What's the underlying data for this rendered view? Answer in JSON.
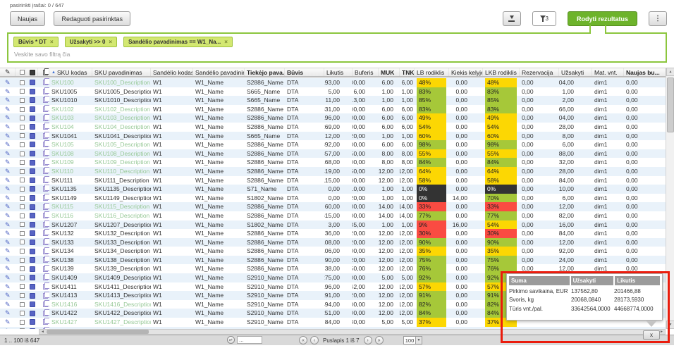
{
  "toolbar": {
    "selected_info": "pasirinkti įrašai: 0 / 647",
    "new_button": "Naujas",
    "edit_button": "Redaguoti pasirinktas",
    "show_results_button": "Rodyti rezultatus",
    "filter_count": "3"
  },
  "filter": {
    "chips": [
      {
        "label": "Būvis * DT"
      },
      {
        "label": "Užsakyti >> 0"
      },
      {
        "label": "Sandėlio pavadinimas == W1_Na..."
      }
    ],
    "placeholder": "Veskite savo filtrą čia"
  },
  "table": {
    "columns": [
      "SKU kodas",
      "SKU pavadinimas",
      "Sandėlio kodas",
      "Sandėlio pavadinimas",
      "Tiekėjo pava...",
      "Būvis",
      "Likutis",
      "Buferis",
      "MUK",
      "TNK",
      "LB rodiklis",
      "Kiekis kelyje",
      "LKB rodiklis",
      "Rezervacija",
      "Užsakyti",
      "Mat. vnt.",
      "Naujas bu..."
    ],
    "rows": [
      {
        "sku": "SKU100",
        "name": "SKU100_Description",
        "wh_code": "W1",
        "wh_name": "W1_Name",
        "supplier": "S2886_Name",
        "status": "DTA",
        "likutis": "193,00",
        "buferis": "400,00",
        "muk": "6,00",
        "tnk": "6,00",
        "lb": "48%",
        "lb_c": "yellow",
        "kiekis": "0,00",
        "lkb": "48%",
        "lkb_c": "yellow",
        "rez": "0,00",
        "uzsakyti": "204,00",
        "mat": "dim1",
        "naujas": "0,00",
        "green": true
      },
      {
        "sku": "SKU1005",
        "name": "SKU1005_Description",
        "wh_code": "W1",
        "wh_name": "W1_Name",
        "supplier": "S665_Name",
        "status": "DTA",
        "likutis": "5,00",
        "buferis": "6,00",
        "muk": "1,00",
        "tnk": "1,00",
        "lb": "83%",
        "lb_c": "green",
        "kiekis": "0,00",
        "lkb": "83%",
        "lkb_c": "green",
        "rez": "0,00",
        "uzsakyti": "1,00",
        "mat": "dim1",
        "naujas": "0,00",
        "green": false
      },
      {
        "sku": "SKU1010",
        "name": "SKU1010_Description",
        "wh_code": "W1",
        "wh_name": "W1_Name",
        "supplier": "S665_Name",
        "status": "DTA",
        "likutis": "11,00",
        "buferis": "13,00",
        "muk": "1,00",
        "tnk": "1,00",
        "lb": "85%",
        "lb_c": "green",
        "kiekis": "0,00",
        "lkb": "85%",
        "lkb_c": "green",
        "rez": "0,00",
        "uzsakyti": "2,00",
        "mat": "dim1",
        "naujas": "0,00",
        "green": false
      },
      {
        "sku": "SKU102",
        "name": "SKU102_Description",
        "wh_code": "W1",
        "wh_name": "W1_Name",
        "supplier": "S2886_Name",
        "status": "DTA",
        "likutis": "331,00",
        "buferis": "400,00",
        "muk": "6,00",
        "tnk": "6,00",
        "lb": "83%",
        "lb_c": "green",
        "kiekis": "0,00",
        "lkb": "83%",
        "lkb_c": "green",
        "rez": "0,00",
        "uzsakyti": "66,00",
        "mat": "dim1",
        "naujas": "0,00",
        "green": true
      },
      {
        "sku": "SKU103",
        "name": "SKU103_Description",
        "wh_code": "W1",
        "wh_name": "W1_Name",
        "supplier": "S2886_Name",
        "status": "DTA",
        "likutis": "196,00",
        "buferis": "400,00",
        "muk": "6,00",
        "tnk": "6,00",
        "lb": "49%",
        "lb_c": "yellow",
        "kiekis": "0,00",
        "lkb": "49%",
        "lkb_c": "yellow",
        "rez": "0,00",
        "uzsakyti": "204,00",
        "mat": "dim1",
        "naujas": "0,00",
        "green": true
      },
      {
        "sku": "SKU104",
        "name": "SKU104_Description",
        "wh_code": "W1",
        "wh_name": "W1_Name",
        "supplier": "S2886_Name",
        "status": "DTA",
        "likutis": "269,00",
        "buferis": "500,00",
        "muk": "6,00",
        "tnk": "6,00",
        "lb": "54%",
        "lb_c": "yellow",
        "kiekis": "0,00",
        "lkb": "54%",
        "lkb_c": "yellow",
        "rez": "0,00",
        "uzsakyti": "228,00",
        "mat": "dim1",
        "naujas": "0,00",
        "green": true
      },
      {
        "sku": "SKU1041",
        "name": "SKU1041_Description",
        "wh_code": "W1",
        "wh_name": "W1_Name",
        "supplier": "S665_Name",
        "status": "DTA",
        "likutis": "12,00",
        "buferis": "20,00",
        "muk": "1,00",
        "tnk": "1,00",
        "lb": "60%",
        "lb_c": "yellow",
        "kiekis": "0,00",
        "lkb": "60%",
        "lkb_c": "yellow",
        "rez": "0,00",
        "uzsakyti": "8,00",
        "mat": "dim1",
        "naujas": "0,00",
        "green": false
      },
      {
        "sku": "SKU105",
        "name": "SKU105_Description",
        "wh_code": "W1",
        "wh_name": "W1_Name",
        "supplier": "S2886_Name",
        "status": "DTA",
        "likutis": "392,00",
        "buferis": "400,00",
        "muk": "6,00",
        "tnk": "6,00",
        "lb": "98%",
        "lb_c": "green",
        "kiekis": "0,00",
        "lkb": "98%",
        "lkb_c": "green",
        "rez": "0,00",
        "uzsakyti": "6,00",
        "mat": "dim1",
        "naujas": "0,00",
        "green": true
      },
      {
        "sku": "SKU108",
        "name": "SKU108_Description",
        "wh_code": "W1",
        "wh_name": "W1_Name",
        "supplier": "S2886_Name",
        "status": "DTA",
        "likutis": "357,00",
        "buferis": "650,00",
        "muk": "8,00",
        "tnk": "8,00",
        "lb": "55%",
        "lb_c": "yellow",
        "kiekis": "0,00",
        "lkb": "55%",
        "lkb_c": "yellow",
        "rez": "0,00",
        "uzsakyti": "288,00",
        "mat": "dim1",
        "naujas": "0,00",
        "green": true
      },
      {
        "sku": "SKU109",
        "name": "SKU109_Description",
        "wh_code": "W1",
        "wh_name": "W1_Name",
        "supplier": "S2886_Name",
        "status": "DTA",
        "likutis": "168,00",
        "buferis": "200,00",
        "muk": "8,00",
        "tnk": "8,00",
        "lb": "84%",
        "lb_c": "green",
        "kiekis": "0,00",
        "lkb": "84%",
        "lkb_c": "green",
        "rez": "0,00",
        "uzsakyti": "32,00",
        "mat": "dim1",
        "naujas": "0,00",
        "green": true
      },
      {
        "sku": "SKU110",
        "name": "SKU110_Description",
        "wh_code": "W1",
        "wh_name": "W1_Name",
        "supplier": "S2886_Name",
        "status": "DTA",
        "likutis": "419,00",
        "buferis": "650,00",
        "muk": "12,00",
        "tnk": "12,00",
        "lb": "64%",
        "lb_c": "yellow",
        "kiekis": "0,00",
        "lkb": "64%",
        "lkb_c": "yellow",
        "rez": "0,00",
        "uzsakyti": "228,00",
        "mat": "dim1",
        "naujas": "0,00",
        "green": true
      },
      {
        "sku": "SKU111",
        "name": "SKU111_Description",
        "wh_code": "W1",
        "wh_name": "W1_Name",
        "supplier": "S2886_Name",
        "status": "DTA",
        "likutis": "115,00",
        "buferis": "200,00",
        "muk": "12,00",
        "tnk": "12,00",
        "lb": "58%",
        "lb_c": "yellow",
        "kiekis": "0,00",
        "lkb": "58%",
        "lkb_c": "yellow",
        "rez": "0,00",
        "uzsakyti": "84,00",
        "mat": "dim1",
        "naujas": "0,00",
        "green": false
      },
      {
        "sku": "SKU1135",
        "name": "SKU1135_Description",
        "wh_code": "W1",
        "wh_name": "W1_Name",
        "supplier": "S71_Name",
        "status": "DTA",
        "likutis": "0,00",
        "buferis": "10,00",
        "muk": "1,00",
        "tnk": "1,00",
        "lb": "0%",
        "lb_c": "black",
        "kiekis": "0,00",
        "lkb": "0%",
        "lkb_c": "black",
        "rez": "0,00",
        "uzsakyti": "10,00",
        "mat": "dim1",
        "naujas": "0,00",
        "green": false
      },
      {
        "sku": "SKU1149",
        "name": "SKU1149_Description",
        "wh_code": "W1",
        "wh_name": "W1_Name",
        "supplier": "S1802_Name",
        "status": "DTA",
        "likutis": "0,00",
        "buferis": "20,00",
        "muk": "1,00",
        "tnk": "1,00",
        "lb": "0%",
        "lb_c": "black",
        "kiekis": "14,00",
        "lkb": "70%",
        "lkb_c": "green",
        "rez": "0,00",
        "uzsakyti": "6,00",
        "mat": "dim1",
        "naujas": "0,00",
        "green": false
      },
      {
        "sku": "SKU115",
        "name": "SKU115_Description",
        "wh_code": "W1",
        "wh_name": "W1_Name",
        "supplier": "S2886_Name",
        "status": "DTA",
        "likutis": "60,00",
        "buferis": "180,00",
        "muk": "14,00",
        "tnk": "14,00",
        "lb": "33%",
        "lb_c": "red",
        "kiekis": "0,00",
        "lkb": "33%",
        "lkb_c": "red",
        "rez": "0,00",
        "uzsakyti": "112,00",
        "mat": "dim1",
        "naujas": "0,00",
        "green": true
      },
      {
        "sku": "SKU116",
        "name": "SKU116_Description",
        "wh_code": "W1",
        "wh_name": "W1_Name",
        "supplier": "S2886_Name",
        "status": "DTA",
        "likutis": "615,00",
        "buferis": "800,00",
        "muk": "14,00",
        "tnk": "14,00",
        "lb": "77%",
        "lb_c": "green",
        "kiekis": "0,00",
        "lkb": "77%",
        "lkb_c": "green",
        "rez": "0,00",
        "uzsakyti": "182,00",
        "mat": "dim1",
        "naujas": "0,00",
        "green": true
      },
      {
        "sku": "SKU1207",
        "name": "SKU1207_Description",
        "wh_code": "W1",
        "wh_name": "W1_Name",
        "supplier": "S1802_Name",
        "status": "DTA",
        "likutis": "3,00",
        "buferis": "35,00",
        "muk": "1,00",
        "tnk": "1,00",
        "lb": "9%",
        "lb_c": "red",
        "kiekis": "16,00",
        "lkb": "54%",
        "lkb_c": "yellow",
        "rez": "0,00",
        "uzsakyti": "16,00",
        "mat": "dim1",
        "naujas": "0,00",
        "green": false
      },
      {
        "sku": "SKU132",
        "name": "SKU132_Description",
        "wh_code": "W1",
        "wh_name": "W1_Name",
        "supplier": "S2886_Name",
        "status": "DTA",
        "likutis": "36,00",
        "buferis": "120,00",
        "muk": "12,00",
        "tnk": "12,00",
        "lb": "30%",
        "lb_c": "red",
        "kiekis": "0,00",
        "lkb": "30%",
        "lkb_c": "red",
        "rez": "0,00",
        "uzsakyti": "84,00",
        "mat": "dim1",
        "naujas": "0,00",
        "green": false
      },
      {
        "sku": "SKU133",
        "name": "SKU133_Description",
        "wh_code": "W1",
        "wh_name": "W1_Name",
        "supplier": "S2886_Name",
        "status": "DTA",
        "likutis": "108,00",
        "buferis": "120,00",
        "muk": "12,00",
        "tnk": "12,00",
        "lb": "90%",
        "lb_c": "green",
        "kiekis": "0,00",
        "lkb": "90%",
        "lkb_c": "green",
        "rez": "0,00",
        "uzsakyti": "12,00",
        "mat": "dim1",
        "naujas": "0,00",
        "green": false
      },
      {
        "sku": "SKU134",
        "name": "SKU134_Description",
        "wh_code": "W1",
        "wh_name": "W1_Name",
        "supplier": "S2886_Name",
        "status": "DTA",
        "likutis": "106,00",
        "buferis": "300,00",
        "muk": "12,00",
        "tnk": "12,00",
        "lb": "35%",
        "lb_c": "yellow",
        "kiekis": "0,00",
        "lkb": "35%",
        "lkb_c": "yellow",
        "rez": "0,00",
        "uzsakyti": "192,00",
        "mat": "dim1",
        "naujas": "0,00",
        "green": false
      },
      {
        "sku": "SKU138",
        "name": "SKU138_Description",
        "wh_code": "W1",
        "wh_name": "W1_Name",
        "supplier": "S2886_Name",
        "status": "DTA",
        "likutis": "90,00",
        "buferis": "120,00",
        "muk": "12,00",
        "tnk": "12,00",
        "lb": "75%",
        "lb_c": "green",
        "kiekis": "0,00",
        "lkb": "75%",
        "lkb_c": "green",
        "rez": "0,00",
        "uzsakyti": "24,00",
        "mat": "dim1",
        "naujas": "0,00",
        "green": false
      },
      {
        "sku": "SKU139",
        "name": "SKU139_Description",
        "wh_code": "W1",
        "wh_name": "W1_Name",
        "supplier": "S2886_Name",
        "status": "DTA",
        "likutis": "38,00",
        "buferis": "50,00",
        "muk": "12,00",
        "tnk": "12,00",
        "lb": "76%",
        "lb_c": "green",
        "kiekis": "0,00",
        "lkb": "76%",
        "lkb_c": "green",
        "rez": "0,00",
        "uzsakyti": "12,00",
        "mat": "dim1",
        "naujas": "0,00",
        "green": false
      },
      {
        "sku": "SKU1409",
        "name": "SKU1409_Description",
        "wh_code": "W1",
        "wh_name": "W1_Name",
        "supplier": "S2910_Name",
        "status": "DTA",
        "likutis": "275,00",
        "buferis": "300,00",
        "muk": "5,00",
        "tnk": "5,00",
        "lb": "92%",
        "lb_c": "green",
        "kiekis": "0,00",
        "lkb": "92%",
        "lkb_c": "green",
        "rez": "",
        "uzsakyti": "",
        "mat": "",
        "naujas": "",
        "green": false
      },
      {
        "sku": "SKU1411",
        "name": "SKU1411_Description",
        "wh_code": "W1",
        "wh_name": "W1_Name",
        "supplier": "S2910_Name",
        "status": "DTA",
        "likutis": "196,00",
        "buferis": "342,00",
        "muk": "12,00",
        "tnk": "12,00",
        "lb": "57%",
        "lb_c": "yellow",
        "kiekis": "0,00",
        "lkb": "57%",
        "lkb_c": "yellow",
        "rez": "",
        "uzsakyti": "",
        "mat": "",
        "naujas": "",
        "green": false
      },
      {
        "sku": "SKU1413",
        "name": "SKU1413_Description",
        "wh_code": "W1",
        "wh_name": "W1_Name",
        "supplier": "S2910_Name",
        "status": "DTA",
        "likutis": "291,00",
        "buferis": "320,00",
        "muk": "12,00",
        "tnk": "12,00",
        "lb": "91%",
        "lb_c": "green",
        "kiekis": "0,00",
        "lkb": "91%",
        "lkb_c": "green",
        "rez": "",
        "uzsakyti": "",
        "mat": "",
        "naujas": "",
        "green": false
      },
      {
        "sku": "SKU1416",
        "name": "SKU1416_Description",
        "wh_code": "W1",
        "wh_name": "W1_Name",
        "supplier": "S2910_Name",
        "status": "DTA",
        "likutis": "494,00",
        "buferis": "600,00",
        "muk": "12,00",
        "tnk": "12,00",
        "lb": "82%",
        "lb_c": "green",
        "kiekis": "0,00",
        "lkb": "82%",
        "lkb_c": "green",
        "rez": "",
        "uzsakyti": "",
        "mat": "",
        "naujas": "",
        "green": true
      },
      {
        "sku": "SKU1422",
        "name": "SKU1422_Description",
        "wh_code": "W1",
        "wh_name": "W1_Name",
        "supplier": "S2910_Name",
        "status": "DTA",
        "likutis": "251,00",
        "buferis": "300,00",
        "muk": "12,00",
        "tnk": "12,00",
        "lb": "84%",
        "lb_c": "green",
        "kiekis": "0,00",
        "lkb": "84%",
        "lkb_c": "green",
        "rez": "",
        "uzsakyti": "",
        "mat": "",
        "naujas": "",
        "green": false
      },
      {
        "sku": "SKU1427",
        "name": "SKU1427_Description",
        "wh_code": "W1",
        "wh_name": "W1_Name",
        "supplier": "S2910_Name",
        "status": "DTA",
        "likutis": "84,00",
        "buferis": "230,00",
        "muk": "5,00",
        "tnk": "5,00",
        "lb": "37%",
        "lb_c": "yellow",
        "kiekis": "0,00",
        "lkb": "37%",
        "lkb_c": "yellow",
        "rez": "",
        "uzsakyti": "",
        "mat": "",
        "naujas": "",
        "green": true
      },
      {
        "sku": "",
        "name": "",
        "wh_code": "",
        "wh_name": "",
        "supplier": "",
        "status": "",
        "likutis": "",
        "buferis": "",
        "muk": "",
        "tnk": "",
        "lb": "",
        "lb_c": "",
        "kiekis": "",
        "lkb": "",
        "lkb_c": "",
        "rez": "",
        "uzsakyti": "",
        "mat": "",
        "naujas": "",
        "green": false
      }
    ]
  },
  "summary_popup": {
    "headers": [
      "Suma",
      "Užsakyti",
      "Likutis"
    ],
    "rows": [
      {
        "label": "Pirkimo savikaina, EUR",
        "uzsakyti": "137562,80",
        "likutis": "201466,88"
      },
      {
        "label": "Svoris, kg",
        "uzsakyti": "20068,0840",
        "likutis": "28173,5930"
      },
      {
        "label": "Tūris vnt./pal.",
        "uzsakyti": "33642564,0000",
        "likutis": "44668774,0000"
      }
    ],
    "close_label": "x"
  },
  "footer": {
    "range_info": "1 .. 100 iš 647",
    "page_info": "Puslapis 1 iš 7",
    "goto_placeholder": "...",
    "page_size": "100"
  },
  "icons": {
    "sort_asc": "▲",
    "chip_close": "×",
    "kebab": "⋮",
    "scroll_up": "▲",
    "scroll_down": "▼",
    "scroll_left": "◄",
    "scroll_right": "►",
    "pager_first": "«",
    "pager_prev": "‹",
    "pager_next": "›",
    "pager_last": "»",
    "goto_enter": "↵",
    "pencil": "✎",
    "dropdown": "▼"
  },
  "colors": {
    "accent_green": "#6db32b",
    "filter_border": "#8cc63e",
    "chip_bg": "#d3e871",
    "sku_green": "#96c896",
    "stripe_blue": "#e9f2fa",
    "annotation_red": "#ea1c0d",
    "badge": {
      "yellow": "#fcd703",
      "green": "#a6c839",
      "red": "#fa4b42",
      "black": "#333333"
    }
  }
}
